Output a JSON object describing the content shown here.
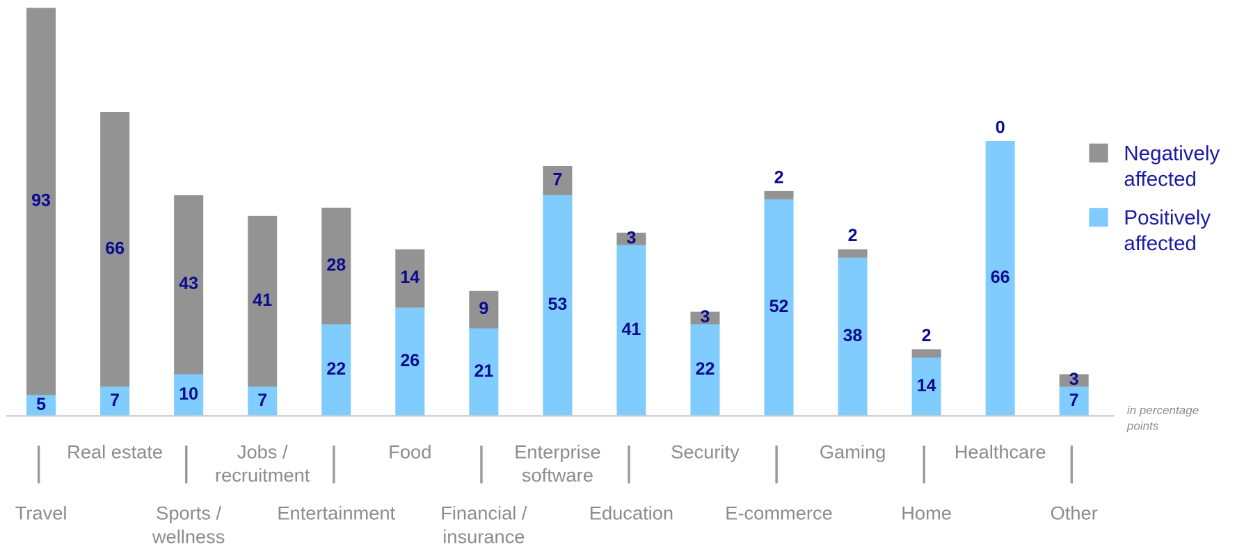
{
  "chart_data": {
    "type": "stacked_bar",
    "categories": [
      "Travel",
      "Real estate",
      "Sports / wellness",
      "Jobs / recruitment",
      "Entertainment",
      "Food",
      "Financial / insurance",
      "Enterprise software",
      "Education",
      "Security",
      "E-commerce",
      "Gaming",
      "Home",
      "Healthcare",
      "Other"
    ],
    "series": [
      {
        "name": "Negatively affected",
        "color": "#939393",
        "values": [
          93,
          66,
          43,
          41,
          28,
          14,
          9,
          7,
          3,
          3,
          2,
          2,
          2,
          0,
          3
        ]
      },
      {
        "name": "Positively affected",
        "color": "#80ccff",
        "values": [
          5,
          7,
          10,
          7,
          22,
          26,
          21,
          53,
          41,
          22,
          52,
          38,
          14,
          66,
          7
        ]
      }
    ],
    "ylim": [
      0,
      98
    ],
    "annotation": "in percentage points",
    "legend": "right"
  }
}
